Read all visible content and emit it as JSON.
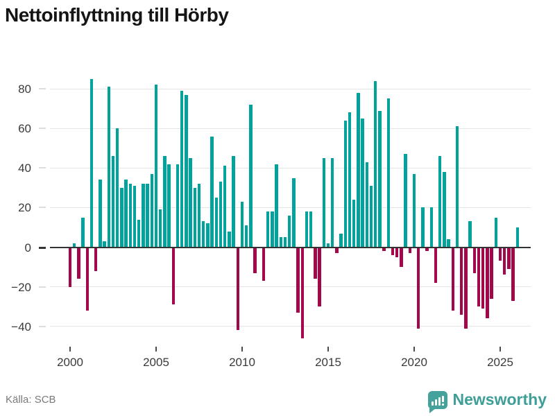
{
  "title": "Nettoinflyttning till Hörby",
  "footer": {
    "source_label": "Källa: SCB",
    "brand": "Newsworthy"
  },
  "colors": {
    "positive": "#00a39c",
    "negative": "#a2074b",
    "brand": "#44a19b",
    "grid": "#e4e4e4",
    "axis": "#333333",
    "tick_label": "#3a3a3a",
    "muted": "#7a7a7a"
  },
  "chart_data": {
    "type": "bar",
    "title": "Nettoinflyttning till Hörby",
    "frequency": "quarterly",
    "x_start": {
      "year": 2000,
      "quarter": 1
    },
    "x_tick_labels": [
      "2000",
      "2005",
      "2010",
      "2015",
      "2020",
      "2025"
    ],
    "y_ticks": [
      80,
      60,
      40,
      20,
      0,
      -20,
      -40
    ],
    "ylim": [
      -47,
      87
    ],
    "grid": "horizontal",
    "legend": "none",
    "positive_color_meaning": "net in-migration",
    "negative_color_meaning": "net out-migration",
    "values": [
      -20,
      2,
      -16,
      15,
      -32,
      85,
      -12,
      34,
      3,
      81,
      46,
      60,
      30,
      34,
      32,
      31,
      14,
      32,
      32,
      37,
      82,
      19,
      46,
      42,
      -29,
      42,
      79,
      77,
      45,
      30,
      32,
      13,
      12,
      56,
      25,
      33,
      41,
      8,
      46,
      -42,
      23,
      11,
      72,
      -13,
      0,
      -17,
      18,
      18,
      42,
      5,
      5,
      16,
      35,
      -33,
      -46,
      18,
      18,
      -16,
      -30,
      45,
      2,
      45,
      -3,
      7,
      64,
      68,
      24,
      78,
      65,
      43,
      31,
      84,
      69,
      -2,
      75,
      -4,
      -5,
      -10,
      47,
      -3,
      37,
      -41,
      20,
      -2,
      20,
      -18,
      46,
      38,
      4,
      -32,
      61,
      -34,
      -41,
      13,
      -13,
      -30,
      -31,
      -36,
      -26,
      15,
      -7,
      -14,
      -11,
      -27,
      10
    ]
  }
}
